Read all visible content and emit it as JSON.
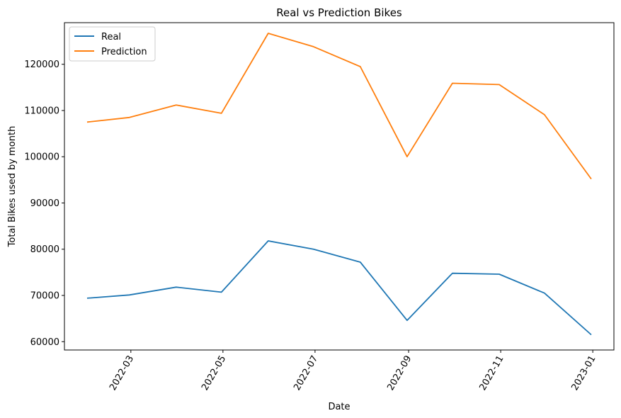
{
  "chart_data": {
    "type": "line",
    "title": "Real vs Prediction Bikes",
    "xlabel": "Date",
    "ylabel": "Total Bikes used by month",
    "x": [
      "2022-01-31",
      "2022-02-28",
      "2022-03-31",
      "2022-04-30",
      "2022-05-31",
      "2022-06-30",
      "2022-07-31",
      "2022-08-31",
      "2022-09-30",
      "2022-10-31",
      "2022-11-30",
      "2022-12-31"
    ],
    "series": [
      {
        "name": "Real",
        "color": "#1f77b4",
        "values": [
          69400,
          70100,
          71800,
          70700,
          81800,
          80000,
          77200,
          64600,
          74800,
          74600,
          70500,
          61500
        ]
      },
      {
        "name": "Prediction",
        "color": "#ff7f0e",
        "values": [
          107500,
          108500,
          111200,
          109400,
          126700,
          123800,
          119500,
          100000,
          115900,
          115600,
          109100,
          95200
        ]
      }
    ],
    "xlim": [
      "2022-01-16",
      "2023-01-15"
    ],
    "ylim": [
      58200,
      129000
    ],
    "x_ticks": [
      {
        "value": "2022-03-01",
        "label": "2022-03"
      },
      {
        "value": "2022-05-01",
        "label": "2022-05"
      },
      {
        "value": "2022-07-01",
        "label": "2022-07"
      },
      {
        "value": "2022-09-01",
        "label": "2022-09"
      },
      {
        "value": "2022-11-01",
        "label": "2022-11"
      },
      {
        "value": "2023-01-01",
        "label": "2023-01"
      }
    ],
    "y_ticks": [
      60000,
      70000,
      80000,
      90000,
      100000,
      110000,
      120000
    ],
    "y_tick_labels": [
      "60000",
      "70000",
      "80000",
      "90000",
      "100000",
      "110000",
      "120000"
    ],
    "legend_position": "top-left",
    "grid": false
  }
}
